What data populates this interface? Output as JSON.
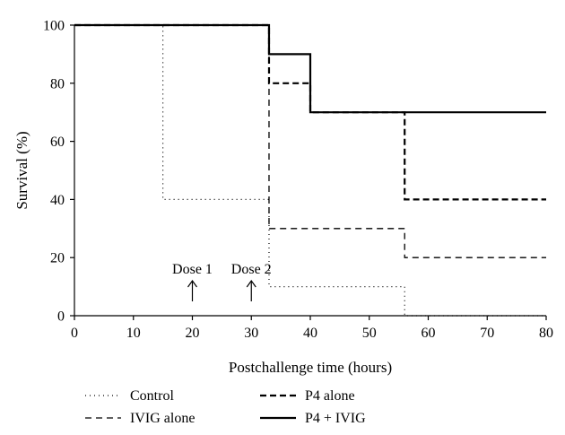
{
  "chart_data": {
    "type": "line",
    "step": true,
    "title": "",
    "xlabel": "Postchallenge time (hours)",
    "ylabel": "Survival (%)",
    "xlim": [
      0,
      80
    ],
    "ylim": [
      0,
      100
    ],
    "xticks": [
      0,
      10,
      20,
      30,
      40,
      50,
      60,
      70,
      80
    ],
    "yticks": [
      0,
      20,
      40,
      60,
      80,
      100
    ],
    "grid": false,
    "legend_position": "bottom",
    "series": [
      {
        "name": "Control",
        "style": "dotted",
        "color": "#000000",
        "x": [
          0,
          15,
          33,
          56,
          80
        ],
        "y": [
          100,
          40,
          10,
          0,
          0
        ]
      },
      {
        "name": "P4 alone",
        "style": "dashed",
        "color": "#000000",
        "x": [
          0,
          33,
          40,
          56,
          80
        ],
        "y": [
          100,
          80,
          70,
          40,
          40
        ]
      },
      {
        "name": "IVIG alone",
        "style": "dashed-light",
        "color": "#000000",
        "x": [
          0,
          33,
          56,
          80
        ],
        "y": [
          100,
          30,
          20,
          20
        ]
      },
      {
        "name": "P4 + IVIG",
        "style": "solid",
        "color": "#000000",
        "x": [
          0,
          33,
          40,
          80
        ],
        "y": [
          100,
          90,
          70,
          70
        ]
      }
    ],
    "annotations": [
      {
        "text": "Dose 1",
        "x": 20,
        "arrow": true
      },
      {
        "text": "Dose 2",
        "x": 30,
        "arrow": true
      }
    ]
  }
}
